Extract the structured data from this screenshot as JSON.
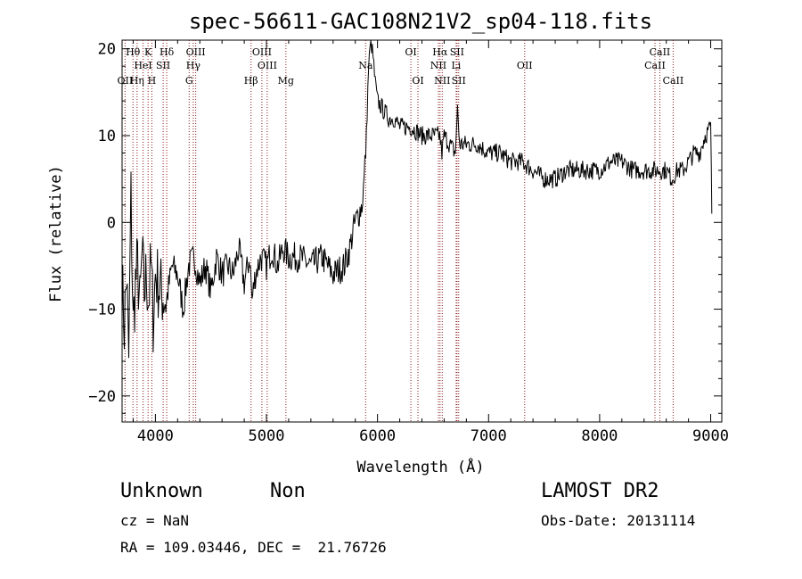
{
  "chart_data": {
    "type": "line",
    "title": "spec-56611-GAC108N21V2_sp04-118.fits",
    "xlabel": "Wavelength (Å)",
    "ylabel": "Flux (relative)",
    "xlim": [
      3700,
      9100
    ],
    "ylim": [
      -23,
      21
    ],
    "xticks": [
      4000,
      5000,
      6000,
      7000,
      8000,
      9000
    ],
    "yticks": [
      -20,
      -10,
      0,
      10,
      20
    ],
    "grid": false,
    "line_color": "#000000",
    "marker_color": "#8b1a1a",
    "series": [
      {
        "x": [
          3700,
          3720,
          3740,
          3760,
          3780,
          3800,
          3820,
          3840,
          3860,
          3880,
          3900,
          3920,
          3940,
          3960,
          3980,
          4000,
          4050,
          4100,
          4150,
          4200,
          4250,
          4300,
          4350,
          4400,
          4450,
          4500,
          4550,
          4600,
          4650,
          4700,
          4750,
          4800,
          4850,
          4870,
          4900,
          4950,
          5000,
          5050,
          5100,
          5150,
          5200,
          5300,
          5400,
          5500,
          5600,
          5700,
          5750,
          5780,
          5800,
          5830,
          5860,
          5880,
          5900,
          5920,
          5940,
          5960,
          5980,
          6000,
          6050,
          6100,
          6150,
          6200,
          6300,
          6400,
          6500,
          6560,
          6580,
          6600,
          6650,
          6700,
          6720,
          6740,
          6800,
          6900,
          7000,
          7100,
          7200,
          7300,
          7400,
          7500,
          7600,
          7700,
          7800,
          7900,
          8000,
          8100,
          8200,
          8300,
          8400,
          8500,
          8550,
          8600,
          8650,
          8700,
          8750,
          8800,
          8850,
          8900,
          8950,
          9000,
          9010
        ],
        "y": [
          -7,
          -12,
          -6,
          -16,
          3,
          -12,
          -7,
          -5,
          -10,
          -4,
          -8,
          -6,
          -9,
          -5,
          -11,
          -6,
          -8,
          -9,
          -5,
          -6,
          -10,
          -5,
          -4,
          -7,
          -5,
          -8,
          -4,
          -6,
          -5,
          -6,
          -3,
          -7,
          -4,
          -9,
          -6,
          -4,
          -5,
          -3,
          -5,
          -3,
          -4,
          -4,
          -5,
          -4,
          -6,
          -5,
          -3,
          -1,
          0,
          1,
          2,
          5,
          10,
          18,
          21,
          19,
          16,
          14,
          13,
          12,
          12,
          11,
          11,
          10,
          10,
          10,
          8,
          10,
          9,
          8,
          13,
          9,
          9,
          9,
          8,
          8,
          7,
          7,
          6,
          5,
          5,
          6,
          6,
          6,
          6,
          7,
          7,
          6,
          6,
          6,
          6,
          6,
          5,
          6,
          6,
          7,
          8,
          8,
          10,
          11,
          1
        ]
      }
    ],
    "line_markers": [
      {
        "label": "Hθ",
        "x": 3798,
        "row": 1
      },
      {
        "label": "K",
        "x": 3934,
        "row": 1
      },
      {
        "label": "Hδ",
        "x": 4102,
        "row": 1
      },
      {
        "label": "OIII",
        "x": 4363,
        "row": 1
      },
      {
        "label": "OIII",
        "x": 4959,
        "row": 1
      },
      {
        "label": "OI",
        "x": 6300,
        "row": 1
      },
      {
        "label": "Hα",
        "x": 6563,
        "row": 1
      },
      {
        "label": "SII",
        "x": 6716,
        "row": 1
      },
      {
        "label": "CaII",
        "x": 8542,
        "row": 1
      },
      {
        "label": "HeI",
        "x": 3889,
        "row": 2
      },
      {
        "label": "SII",
        "x": 4070,
        "row": 2
      },
      {
        "label": "Hγ",
        "x": 4341,
        "row": 2
      },
      {
        "label": "OIII",
        "x": 5007,
        "row": 2
      },
      {
        "label": "Na",
        "x": 5893,
        "row": 2
      },
      {
        "label": "NII",
        "x": 6548,
        "row": 2
      },
      {
        "label": "Li",
        "x": 6708,
        "row": 2
      },
      {
        "label": "OII",
        "x": 7325,
        "row": 2
      },
      {
        "label": "CaII",
        "x": 8498,
        "row": 2
      },
      {
        "label": "OII",
        "x": 3727,
        "row": 3
      },
      {
        "label": "Hη",
        "x": 3835,
        "row": 3
      },
      {
        "label": "H",
        "x": 3968,
        "row": 3
      },
      {
        "label": "G",
        "x": 4304,
        "row": 3
      },
      {
        "label": "Hβ",
        "x": 4861,
        "row": 3
      },
      {
        "label": "Mg",
        "x": 5175,
        "row": 3
      },
      {
        "label": "OI",
        "x": 6364,
        "row": 3
      },
      {
        "label": "NII",
        "x": 6583,
        "row": 3
      },
      {
        "label": "SII",
        "x": 6731,
        "row": 3
      },
      {
        "label": "CaII",
        "x": 8662,
        "row": 3
      }
    ]
  },
  "info": {
    "object_class": "Unknown",
    "subclass": "Non",
    "survey": "LAMOST DR2",
    "cz": "cz = NaN",
    "obs_date": "Obs-Date: 20131114",
    "coords": "RA = 109.03446, DEC =  21.76726"
  }
}
